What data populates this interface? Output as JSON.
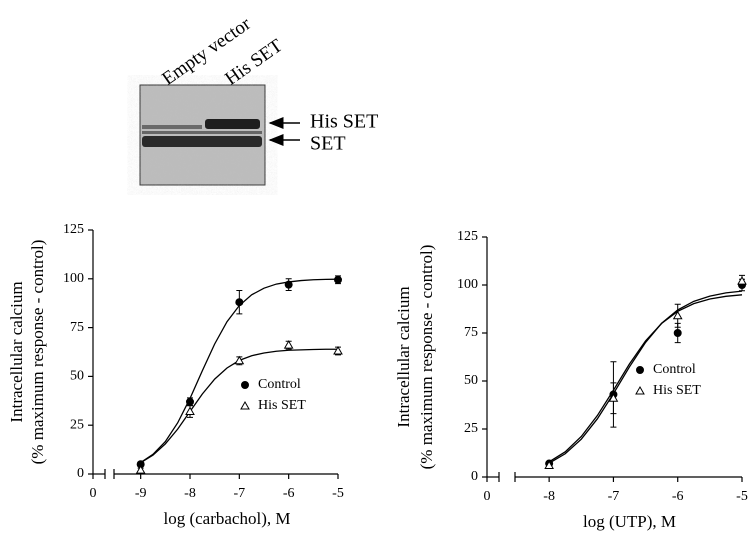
{
  "blot": {
    "lanes": [
      "Empty vector",
      "His SET"
    ],
    "bands": [
      "His SET",
      "SET"
    ]
  },
  "chart_data": [
    {
      "type": "scatter",
      "xlabel": "log (carbachol), M",
      "ylabel": [
        "Intracellular calcium",
        "(% maximum response - control)"
      ],
      "x": [
        -9,
        -8,
        -7,
        -6,
        -5
      ],
      "xlim": [
        -9.5,
        -5
      ],
      "xticks": [
        -9,
        -8,
        -7,
        -6,
        -5
      ],
      "x_break_tick": 0,
      "ylim": [
        0,
        125
      ],
      "yticks": [
        0,
        25,
        50,
        75,
        100,
        125
      ],
      "fit_x": [
        -9,
        -8.75,
        -8.5,
        -8.25,
        -8,
        -7.75,
        -7.5,
        -7.25,
        -7,
        -6.75,
        -6.5,
        -6.25,
        -6,
        -5.75,
        -5.5,
        -5.25,
        -5
      ],
      "series": [
        {
          "name": "Control",
          "color": "#000000",
          "marker": "circle",
          "filled": true,
          "values": [
            5,
            37,
            88,
            97,
            99.5
          ],
          "errors": [
            1,
            2,
            6,
            3,
            2
          ],
          "fit": [
            5.9,
            10.1,
            16.6,
            26.2,
            38.7,
            52.9,
            66.6,
            78.0,
            86.3,
            91.8,
            95.2,
            97.3,
            98.4,
            99.1,
            99.5,
            99.7,
            99.8
          ]
        },
        {
          "name": "His SET",
          "color": "#000000",
          "marker": "triangle",
          "filled": false,
          "values": [
            2,
            32,
            58,
            66,
            63
          ],
          "errors": [
            1,
            3,
            2,
            2,
            2
          ],
          "fit": [
            5.8,
            9.7,
            15.4,
            23.0,
            32.0,
            41.0,
            48.6,
            54.3,
            58.2,
            60.6,
            62.0,
            62.9,
            63.4,
            63.6,
            63.8,
            63.9,
            63.9
          ]
        }
      ]
    },
    {
      "type": "scatter",
      "xlabel": "log (UTP), M",
      "ylabel": [
        "Intracellular calcium",
        "(% maximum response - control)"
      ],
      "x": [
        -8,
        -7,
        -6,
        -5
      ],
      "xlim": [
        -8.5,
        -5
      ],
      "xticks": [
        -8,
        -7,
        -6,
        -5
      ],
      "x_break_tick": 0,
      "ylim": [
        0,
        125
      ],
      "yticks": [
        0,
        25,
        50,
        75,
        100,
        125
      ],
      "fit_x": [
        -8,
        -7.75,
        -7.5,
        -7.25,
        -7,
        -6.75,
        -6.5,
        -6.25,
        -6,
        -5.75,
        -5.5,
        -5.25,
        -5
      ],
      "series": [
        {
          "name": "Control",
          "color": "#000000",
          "marker": "circle",
          "filled": true,
          "values": [
            7,
            43,
            75,
            100
          ],
          "errors": [
            1,
            17,
            5,
            3
          ],
          "fit": [
            7.2,
            12.1,
            19.7,
            30.3,
            43.4,
            57.4,
            70.1,
            80.1,
            87.0,
            91.5,
            94.2,
            95.9,
            96.8
          ]
        },
        {
          "name": "His SET",
          "color": "#000000",
          "marker": "triangle",
          "filled": false,
          "values": [
            6,
            41,
            84,
            102
          ],
          "errors": [
            1,
            8,
            6,
            3
          ],
          "fit": [
            7.9,
            13.1,
            21.1,
            32.0,
            45.2,
            58.9,
            70.9,
            80.0,
            86.3,
            90.3,
            92.7,
            94.1,
            94.9
          ]
        }
      ]
    }
  ]
}
